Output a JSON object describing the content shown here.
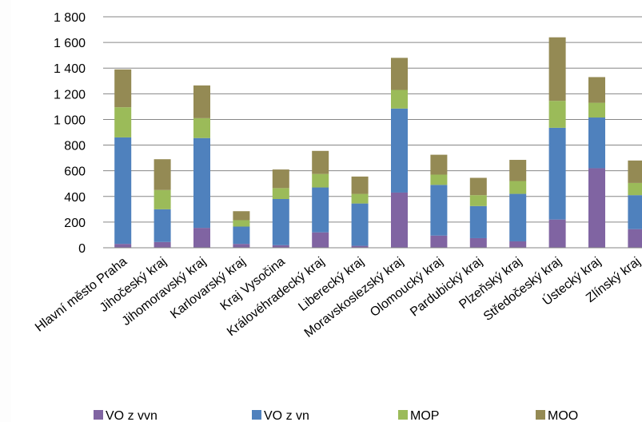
{
  "chart_data": {
    "type": "bar",
    "stacked": true,
    "categories": [
      "Hlavní město Praha",
      "Jihočeský kraj",
      "Jihomoravský kraj",
      "Karlovarský kraj",
      "Kraj Vysočina",
      "Královéhradecký kraj",
      "Liberecký kraj",
      "Moravskoslezský kraj",
      "Olomoucký kraj",
      "Pardubický kraj",
      "Plzeňský kraj",
      "Středočeský kraj",
      "Ústecký kraj",
      "Zlínský kraj"
    ],
    "series": [
      {
        "name": "VO z vvn",
        "color": "#8064a2",
        "values": [
          30,
          45,
          155,
          30,
          20,
          120,
          15,
          430,
          95,
          75,
          50,
          220,
          620,
          145
        ]
      },
      {
        "name": "VO z vn",
        "color": "#4f81bd",
        "values": [
          830,
          255,
          700,
          135,
          360,
          350,
          330,
          655,
          395,
          250,
          370,
          715,
          395,
          265
        ]
      },
      {
        "name": "MOP",
        "color": "#9bbb59",
        "values": [
          235,
          150,
          155,
          50,
          85,
          105,
          75,
          145,
          80,
          85,
          100,
          210,
          115,
          95
        ]
      },
      {
        "name": "MOO",
        "color": "#948a54",
        "values": [
          295,
          240,
          255,
          70,
          145,
          180,
          135,
          250,
          155,
          135,
          165,
          495,
          200,
          175
        ]
      }
    ],
    "ylim": [
      0,
      1800
    ],
    "yticks": [
      0,
      200,
      400,
      600,
      800,
      1000,
      1200,
      1400,
      1600,
      1800
    ],
    "ytick_labels": [
      "0",
      "200",
      "400",
      "600",
      "800",
      "1 000",
      "1 200",
      "1 400",
      "1 600",
      "1 800"
    ],
    "grid": true,
    "legend_position": "bottom"
  }
}
